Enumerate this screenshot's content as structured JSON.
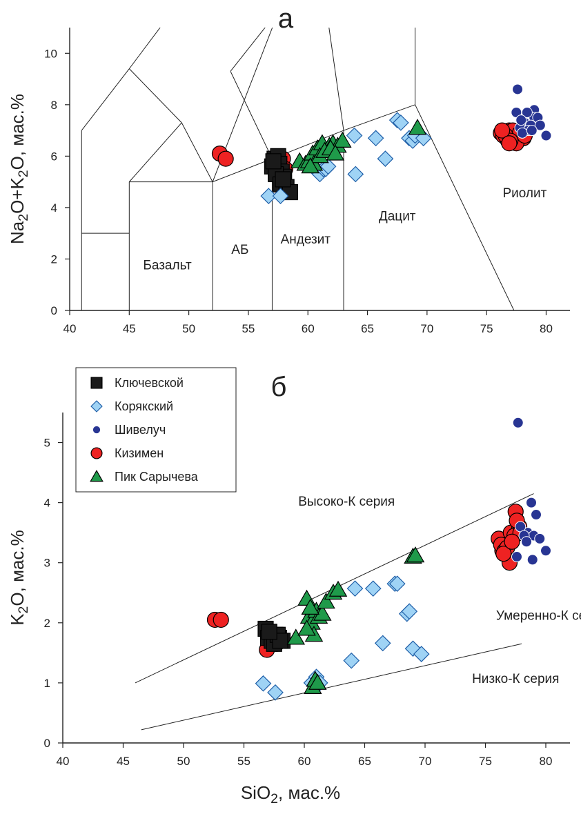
{
  "colors": {
    "Ключевской": "#1a1a1a",
    "Корякский": "#9fd3f5",
    "Шивелуч": "#283593",
    "Кизимен": "#ee2222",
    "Пик Сарычева": "#1f9a4a"
  },
  "legend": {
    "items": [
      {
        "name": "Ключевской",
        "marker": "square-icon"
      },
      {
        "name": "Корякский",
        "marker": "diamond-icon"
      },
      {
        "name": "Шивелуч",
        "marker": "small-circle-icon"
      },
      {
        "name": "Кизимен",
        "marker": "circle-icon"
      },
      {
        "name": "Пик Сарычева",
        "marker": "triangle-icon"
      }
    ]
  },
  "chart_data": [
    {
      "type": "scatter",
      "panel_label": "а",
      "xlabel": "",
      "ylabel": "Na2O+K2O, мас.%",
      "xlim": [
        40,
        82
      ],
      "ylim": [
        0,
        11
      ],
      "xticks": [
        40,
        45,
        50,
        55,
        60,
        65,
        70,
        75,
        80
      ],
      "yticks": [
        0,
        2,
        4,
        6,
        8,
        10
      ],
      "fields": [
        {
          "label": "Базальт",
          "x": 48.2,
          "y": 1.6
        },
        {
          "label": "АБ",
          "x": 54.3,
          "y": 2.2
        },
        {
          "label": "Андезит",
          "x": 59.8,
          "y": 2.6
        },
        {
          "label": "Дацит",
          "x": 67.5,
          "y": 3.5
        },
        {
          "label": "Риолит",
          "x": 78.2,
          "y": 4.4
        }
      ],
      "boundaries": [
        [
          [
            41,
            0
          ],
          [
            41,
            7
          ]
        ],
        [
          [
            41,
            7
          ],
          [
            45,
            9.4
          ]
        ],
        [
          [
            45,
            9.4
          ],
          [
            48.4,
            11.5
          ]
        ],
        [
          [
            41,
            3
          ],
          [
            45,
            3
          ]
        ],
        [
          [
            45,
            0
          ],
          [
            45,
            5
          ]
        ],
        [
          [
            45,
            5
          ],
          [
            52,
            5
          ]
        ],
        [
          [
            45,
            5
          ],
          [
            49.4,
            7.3
          ]
        ],
        [
          [
            49.4,
            7.3
          ],
          [
            52,
            5
          ]
        ],
        [
          [
            45,
            9.4
          ],
          [
            49.4,
            7.3
          ]
        ],
        [
          [
            52,
            0
          ],
          [
            52,
            5
          ]
        ],
        [
          [
            52,
            5
          ],
          [
            57,
            5.9
          ]
        ],
        [
          [
            52,
            5
          ],
          [
            57.6,
            11.7
          ]
        ],
        [
          [
            53.5,
            9.3
          ],
          [
            57.6,
            11.7
          ]
        ],
        [
          [
            53.5,
            9.3
          ],
          [
            57,
            5.9
          ]
        ],
        [
          [
            57,
            0
          ],
          [
            57,
            5.9
          ]
        ],
        [
          [
            57,
            5.9
          ],
          [
            63,
            7
          ]
        ],
        [
          [
            63,
            0
          ],
          [
            63,
            7
          ]
        ],
        [
          [
            63,
            7
          ],
          [
            69,
            8
          ]
        ],
        [
          [
            61,
            13.5
          ],
          [
            63,
            7
          ]
        ],
        [
          [
            69,
            8
          ],
          [
            69,
            17.73
          ]
        ],
        [
          [
            69,
            8
          ],
          [
            77.3,
            0
          ]
        ]
      ],
      "series": [
        {
          "name": "Ключевской",
          "marker": "square",
          "x": [
            57.0,
            57.2,
            57.4,
            57.5,
            57.6,
            57.8,
            58.0,
            57.3,
            57.7,
            58.2,
            58.5,
            57.1,
            57.9
          ],
          "y": [
            5.6,
            5.9,
            5.5,
            6.0,
            5.7,
            5.4,
            5.2,
            5.3,
            4.9,
            4.8,
            4.6,
            5.8,
            5.1
          ]
        },
        {
          "name": "Корякский",
          "marker": "diamond",
          "x": [
            56.7,
            57.7,
            60.5,
            60.8,
            61.0,
            61.3,
            61.5,
            61.7,
            63.9,
            64.0,
            65.7,
            66.5,
            67.5,
            67.8,
            68.5,
            68.8,
            69.0,
            69.7
          ],
          "y": [
            4.45,
            4.45,
            5.6,
            5.4,
            5.3,
            5.5,
            5.5,
            5.6,
            6.8,
            5.3,
            6.7,
            5.9,
            7.4,
            7.3,
            6.7,
            6.6,
            6.8,
            6.7
          ]
        },
        {
          "name": "Шивелуч",
          "marker": "small-circle",
          "x": [
            77.6,
            77.5,
            78.2,
            79.0,
            79.2,
            79.0,
            78.7,
            78.4,
            77.8,
            78.5,
            79.3,
            80.0,
            77.9,
            78.0,
            79.5,
            78.8
          ],
          "y": [
            8.6,
            7.7,
            7.3,
            7.8,
            7.3,
            7.5,
            7.2,
            7.7,
            7.1,
            7.0,
            7.5,
            6.8,
            7.4,
            6.9,
            7.2,
            7.0
          ]
        },
        {
          "name": "Кизимен",
          "marker": "circle",
          "x": [
            52.6,
            53.1,
            57.1,
            57.6,
            57.9,
            58.1,
            57.3,
            57.6,
            76.2,
            76.6,
            76.9,
            77.1,
            77.3,
            77.6,
            77.9,
            78.1,
            76.4,
            76.8,
            77.2,
            77.5,
            77.8,
            76.6,
            77.0,
            78.2,
            76.3,
            76.9
          ],
          "y": [
            6.1,
            5.9,
            5.8,
            5.6,
            5.9,
            5.5,
            5.3,
            5.2,
            6.9,
            6.8,
            7.0,
            6.7,
            6.6,
            6.9,
            6.8,
            6.7,
            6.8,
            6.6,
            7.0,
            6.5,
            6.9,
            6.8,
            6.6,
            6.8,
            7.0,
            6.5
          ]
        },
        {
          "name": "Пик Сарычева",
          "marker": "triangle",
          "x": [
            59.3,
            59.8,
            60.1,
            60.4,
            60.8,
            61.2,
            61.5,
            61.8,
            62.1,
            62.5,
            62.9,
            60.5,
            61.0,
            61.4,
            61.9,
            62.3,
            69.2,
            60.2
          ],
          "y": [
            5.8,
            5.7,
            5.8,
            6.1,
            6.3,
            6.5,
            6.2,
            6.4,
            6.5,
            6.4,
            6.6,
            5.7,
            6.0,
            6.2,
            6.3,
            6.1,
            7.1,
            5.6
          ]
        }
      ]
    },
    {
      "type": "scatter",
      "panel_label": "б",
      "xlabel": "SiO2, мас.%",
      "ylabel": "K2O, мас.%",
      "xlim": [
        40,
        82
      ],
      "ylim": [
        0,
        5.5
      ],
      "xticks": [
        40,
        45,
        50,
        55,
        60,
        65,
        70,
        75,
        80
      ],
      "yticks": [
        0,
        1,
        2,
        3,
        4,
        5
      ],
      "boundaries": [
        [
          [
            46,
            1.0
          ],
          [
            79,
            4.15
          ]
        ],
        [
          [
            46.5,
            0.22
          ],
          [
            78,
            1.65
          ]
        ]
      ],
      "series_labels": [
        {
          "label": "Высоко-К серия",
          "x": 63.5,
          "y": 3.95
        },
        {
          "label": "Умеренно-К серия",
          "x": 80.5,
          "y": 2.05
        },
        {
          "label": "Низко-К серия",
          "x": 77.5,
          "y": 1.0
        }
      ],
      "series": [
        {
          "name": "Ключевской",
          "marker": "square",
          "x": [
            56.8,
            57.0,
            57.3,
            57.6,
            57.9,
            58.2,
            57.5,
            57.8,
            58.0,
            57.1
          ],
          "y": [
            1.9,
            1.75,
            1.7,
            1.8,
            1.75,
            1.7,
            1.65,
            1.8,
            1.7,
            1.85
          ]
        },
        {
          "name": "Корякский",
          "marker": "diamond",
          "x": [
            56.6,
            57.6,
            60.6,
            61.0,
            61.3,
            63.9,
            64.2,
            65.7,
            66.5,
            67.5,
            67.7,
            68.5,
            68.7,
            69.0,
            69.7
          ],
          "y": [
            0.99,
            0.84,
            1.0,
            1.1,
            1.0,
            1.37,
            2.57,
            2.57,
            1.66,
            2.65,
            2.65,
            2.15,
            2.19,
            1.57,
            1.48
          ]
        },
        {
          "name": "Шивелуч",
          "marker": "small-circle",
          "x": [
            77.7,
            78.8,
            79.2,
            78.5,
            79.0,
            80.0,
            79.5,
            77.9,
            78.2,
            78.9,
            77.6,
            78.4
          ],
          "y": [
            5.33,
            4.0,
            3.8,
            3.5,
            3.45,
            3.2,
            3.4,
            3.6,
            3.45,
            3.05,
            3.1,
            3.35
          ]
        },
        {
          "name": "Кизимен",
          "marker": "circle",
          "x": [
            52.6,
            53.1,
            56.9,
            57.3,
            57.7,
            58.1,
            76.1,
            76.4,
            76.8,
            77.1,
            77.5,
            77.8,
            76.3,
            76.6,
            77.0,
            77.4,
            76.8,
            77.6,
            77.9,
            76.5,
            77.2
          ],
          "y": [
            2.05,
            2.05,
            1.55,
            1.75,
            1.65,
            1.7,
            3.4,
            3.2,
            3.3,
            3.5,
            3.85,
            3.6,
            3.3,
            3.2,
            3.0,
            3.45,
            3.25,
            3.7,
            3.5,
            3.15,
            3.35
          ]
        },
        {
          "name": "Пик Сарычева",
          "marker": "triangle",
          "x": [
            59.3,
            60.2,
            60.4,
            60.6,
            60.8,
            61.0,
            61.2,
            61.5,
            61.8,
            62.4,
            62.8,
            69.0,
            69.2,
            60.7,
            60.9,
            61.1,
            60.5,
            60.2
          ],
          "y": [
            1.75,
            2.4,
            2.1,
            2.0,
            1.8,
            2.2,
            2.1,
            2.15,
            2.35,
            2.5,
            2.55,
            3.1,
            3.12,
            0.93,
            1.05,
            1.0,
            2.25,
            1.9
          ]
        }
      ]
    }
  ]
}
